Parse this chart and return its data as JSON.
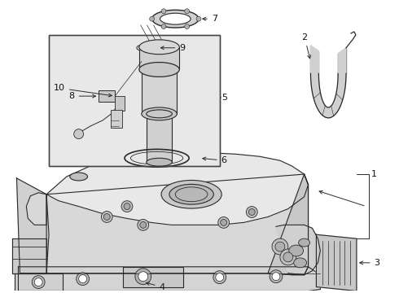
{
  "bg_color": "#ffffff",
  "line_color": "#2a2a2a",
  "callout_color": "#111111",
  "fig_width": 4.9,
  "fig_height": 3.6,
  "dpi": 100,
  "inset_bg": "#e8e8e8",
  "tank_fill": "#e0e0e0",
  "tank_side": "#c8c8c8",
  "strap_fill": "#d8d8d8"
}
